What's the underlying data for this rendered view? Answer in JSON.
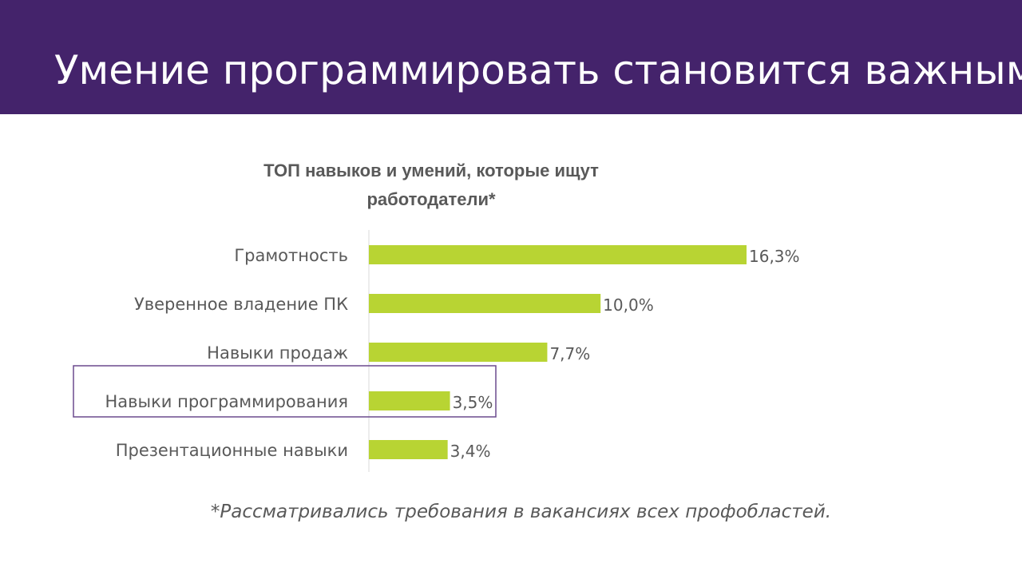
{
  "slide": {
    "title": "Умение программировать становится важным",
    "footnote": "*Рассматривались требования в вакансиях всех профобластей.",
    "colors": {
      "banner": "#44236b",
      "bar": "#b8d433",
      "highlight_border": "#6b4a8e",
      "text": "#595959"
    }
  },
  "chart_data": {
    "type": "bar",
    "orientation": "horizontal",
    "title": "ТОП навыков и умений, которые ищут работодатели*",
    "title_lines": [
      "ТОП навыков и умений, которые ищут",
      "работодатели*"
    ],
    "categories": [
      "Грамотность",
      "Уверенное владение ПК",
      "Навыки продаж",
      "Навыки программирования",
      "Презентационные навыки"
    ],
    "values": [
      16.3,
      10.0,
      7.7,
      3.5,
      3.4
    ],
    "value_labels": [
      "16,3%",
      "10,0%",
      "7,7%",
      "3,5%",
      "3,4%"
    ],
    "unit": "%",
    "xlim": [
      0,
      16.3
    ],
    "highlighted_category": "Навыки программирования",
    "grid": false,
    "legend": "none"
  }
}
